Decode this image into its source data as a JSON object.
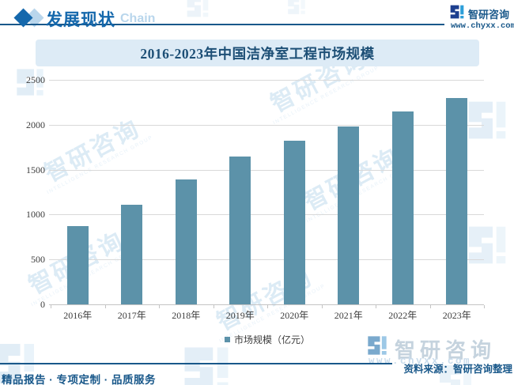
{
  "header": {
    "section_title": "发展现状",
    "section_watermark": "Chain",
    "brand": "智研咨询",
    "site_url": "www.chyxx.com"
  },
  "chart_data": {
    "type": "bar",
    "title": "2016-2023年中国洁净室工程市场规模",
    "categories": [
      "2016年",
      "2017年",
      "2018年",
      "2019年",
      "2020年",
      "2021年",
      "2022年",
      "2023年"
    ],
    "series": [
      {
        "name": "市场规模（亿元）",
        "values": [
          875,
          1110,
          1395,
          1650,
          1825,
          1985,
          2145,
          2300
        ]
      }
    ],
    "ylim": [
      0,
      2500
    ],
    "y_ticks": [
      0,
      500,
      1000,
      1500,
      2000,
      2500
    ],
    "grid": true,
    "legend_position": "bottom",
    "bar_color": "#5c92a9",
    "unit": "亿元"
  },
  "footer": {
    "source": "资料来源：智研咨询整理",
    "slogan": "精品报告 · 专项定制 · 品质服务",
    "brand": "智研咨询",
    "site_url": "www.chyxx.com"
  },
  "watermark": {
    "text": "智研咨询",
    "subtext": "INTELLIGENCE RESEARCH GROUP"
  },
  "colors": {
    "brand_dark_blue": "#19588a",
    "header_blue": "#1568ac",
    "header_watermark_blue": "#b9d6ec",
    "logo_navy": "#1d3f8f",
    "logo_cyan": "#2d9fd9",
    "title_text": "#1d4f76",
    "title_bar_bg": "#ddebf6",
    "bar": "#5c92a9",
    "axis_text": "#3c3c3c",
    "gridline": "#d9d9d9",
    "axis_line": "#c4c4c4",
    "watermark_light": "#d7e8f4",
    "watermark_lighter": "#e3eff8",
    "biglogo_text": "#c5d3de",
    "biglogo_icon_dark": "#7aa9cd",
    "biglogo_icon_light": "#9cc8e6",
    "biglogo_url": "#c9dcec"
  }
}
